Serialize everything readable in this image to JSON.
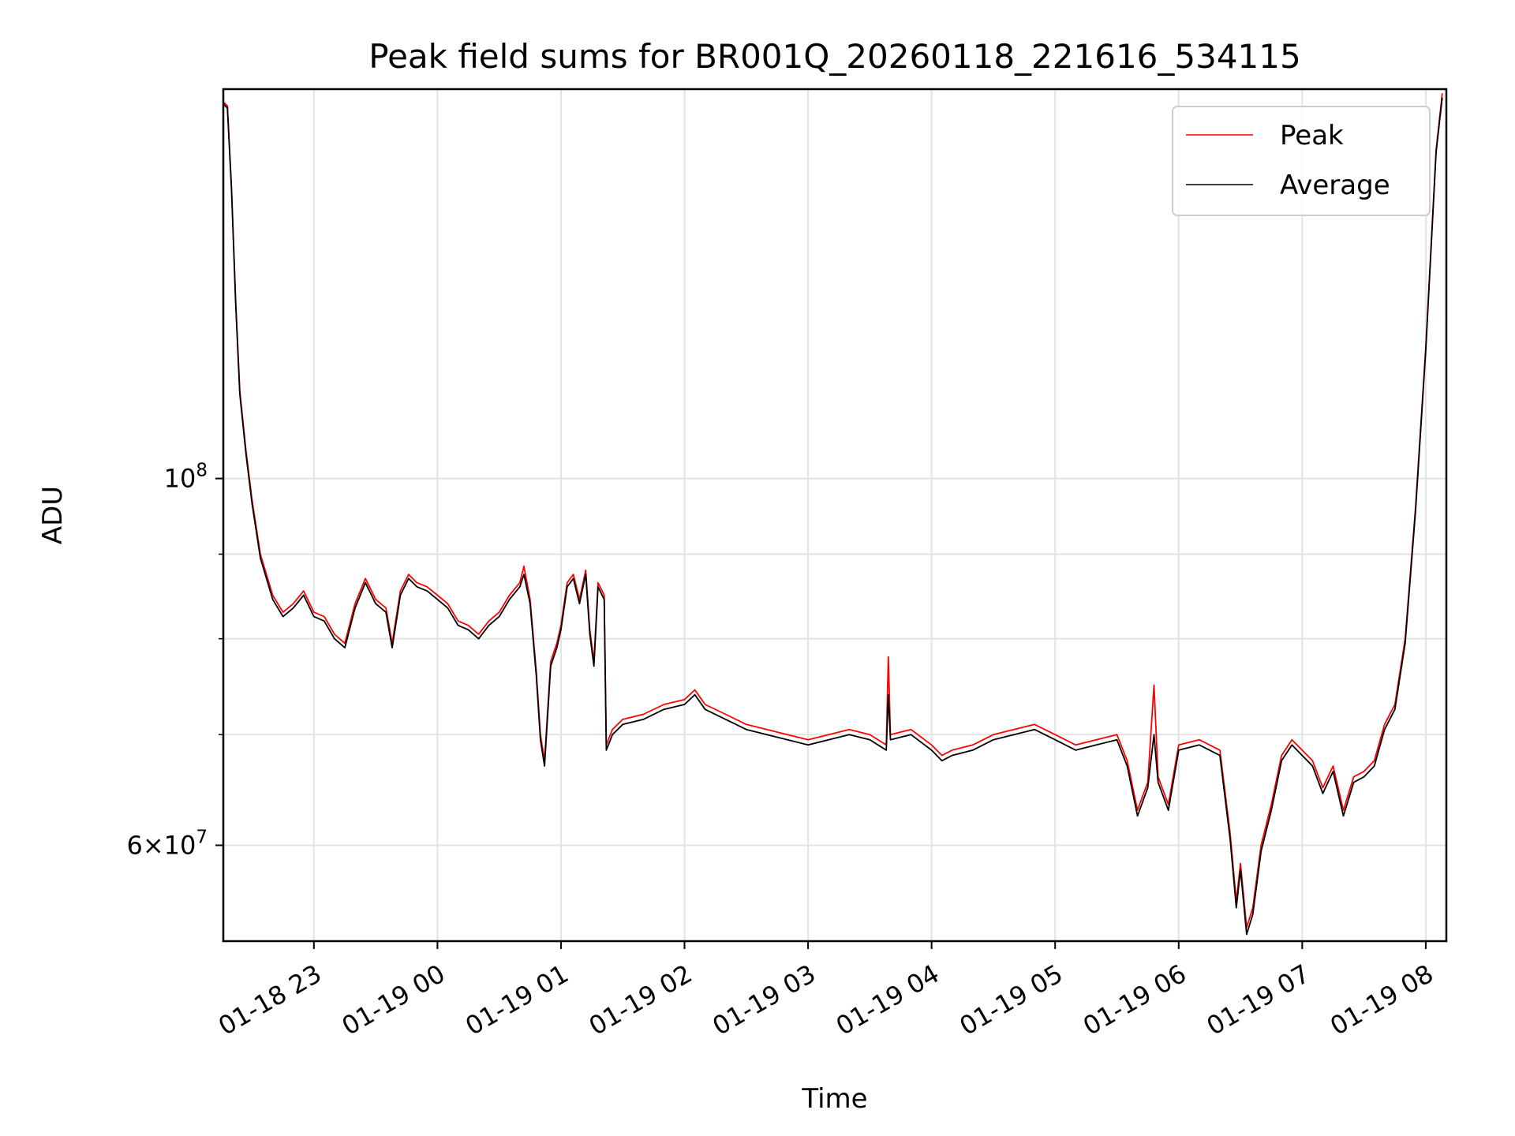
{
  "chart_data": {
    "type": "line",
    "title": "Peak field sums for BR001Q_20260118_221616_534115",
    "xlabel": "Time",
    "ylabel": "ADU",
    "yscale": "log",
    "ylim": [
      52500000,
      172000000
    ],
    "xlim": [
      "2026-01-18 22:16",
      "2026-01-19 08:10"
    ],
    "grid": true,
    "legend": "top-right",
    "x_ticks": [
      {
        "t": "2026-01-18 23:00",
        "label": "01-18 23"
      },
      {
        "t": "2026-01-19 00:00",
        "label": "01-19 00"
      },
      {
        "t": "2026-01-19 01:00",
        "label": "01-19 01"
      },
      {
        "t": "2026-01-19 02:00",
        "label": "01-19 02"
      },
      {
        "t": "2026-01-19 03:00",
        "label": "01-19 03"
      },
      {
        "t": "2026-01-19 04:00",
        "label": "01-19 04"
      },
      {
        "t": "2026-01-19 05:00",
        "label": "01-19 05"
      },
      {
        "t": "2026-01-19 06:00",
        "label": "01-19 06"
      },
      {
        "t": "2026-01-19 07:00",
        "label": "01-19 07"
      },
      {
        "t": "2026-01-19 08:00",
        "label": "01-19 08"
      }
    ],
    "y_ticks": [
      {
        "v": 100000000,
        "label_main": "10",
        "label_sup": "8"
      },
      {
        "v": 60000000,
        "label_main": "6×10",
        "label_sup": "7"
      }
    ],
    "y_minor_ticks": [
      70000000,
      80000000,
      90000000
    ],
    "series": [
      {
        "name": "Peak",
        "color": "#ff0000",
        "points": [
          [
            "2026-01-18 22:16",
            169000000
          ],
          [
            "2026-01-18 22:18",
            168000000
          ],
          [
            "2026-01-18 22:20",
            150000000
          ],
          [
            "2026-01-18 22:22",
            128000000
          ],
          [
            "2026-01-18 22:24",
            113000000
          ],
          [
            "2026-01-18 22:27",
            104000000
          ],
          [
            "2026-01-18 22:30",
            97000000
          ],
          [
            "2026-01-18 22:34",
            90000000
          ],
          [
            "2026-01-18 22:40",
            85000000
          ],
          [
            "2026-01-18 22:45",
            83000000
          ],
          [
            "2026-01-18 22:50",
            84000000
          ],
          [
            "2026-01-18 22:55",
            85500000
          ],
          [
            "2026-01-18 23:00",
            83000000
          ],
          [
            "2026-01-18 23:05",
            82500000
          ],
          [
            "2026-01-18 23:10",
            80500000
          ],
          [
            "2026-01-18 23:15",
            79500000
          ],
          [
            "2026-01-18 23:20",
            84000000
          ],
          [
            "2026-01-18 23:25",
            87000000
          ],
          [
            "2026-01-18 23:30",
            84500000
          ],
          [
            "2026-01-18 23:35",
            83500000
          ],
          [
            "2026-01-18 23:38",
            79500000
          ],
          [
            "2026-01-18 23:42",
            85500000
          ],
          [
            "2026-01-18 23:46",
            87500000
          ],
          [
            "2026-01-18 23:50",
            86500000
          ],
          [
            "2026-01-18 23:55",
            86000000
          ],
          [
            "2026-01-19 00:00",
            85000000
          ],
          [
            "2026-01-19 00:05",
            84000000
          ],
          [
            "2026-01-19 00:10",
            82000000
          ],
          [
            "2026-01-19 00:15",
            81500000
          ],
          [
            "2026-01-19 00:20",
            80500000
          ],
          [
            "2026-01-19 00:25",
            82000000
          ],
          [
            "2026-01-19 00:30",
            83000000
          ],
          [
            "2026-01-19 00:35",
            85000000
          ],
          [
            "2026-01-19 00:40",
            86500000
          ],
          [
            "2026-01-19 00:42",
            88500000
          ],
          [
            "2026-01-19 00:45",
            84500000
          ],
          [
            "2026-01-19 00:48",
            76500000
          ],
          [
            "2026-01-19 00:50",
            70000000
          ],
          [
            "2026-01-19 00:52",
            67500000
          ],
          [
            "2026-01-19 00:55",
            77500000
          ],
          [
            "2026-01-19 00:58",
            79500000
          ],
          [
            "2026-01-19 01:00",
            81500000
          ],
          [
            "2026-01-19 01:03",
            86500000
          ],
          [
            "2026-01-19 01:06",
            87500000
          ],
          [
            "2026-01-19 01:09",
            84500000
          ],
          [
            "2026-01-19 01:12",
            88000000
          ],
          [
            "2026-01-19 01:14",
            81000000
          ],
          [
            "2026-01-19 01:16",
            77500000
          ],
          [
            "2026-01-19 01:18",
            86500000
          ],
          [
            "2026-01-19 01:21",
            85000000
          ],
          [
            "2026-01-19 01:22",
            69000000
          ],
          [
            "2026-01-19 01:25",
            70500000
          ],
          [
            "2026-01-19 01:30",
            71500000
          ],
          [
            "2026-01-19 01:40",
            72000000
          ],
          [
            "2026-01-19 01:50",
            73000000
          ],
          [
            "2026-01-19 02:00",
            73500000
          ],
          [
            "2026-01-19 02:05",
            74500000
          ],
          [
            "2026-01-19 02:10",
            73000000
          ],
          [
            "2026-01-19 02:20",
            72000000
          ],
          [
            "2026-01-19 02:30",
            71000000
          ],
          [
            "2026-01-19 02:40",
            70500000
          ],
          [
            "2026-01-19 02:50",
            70000000
          ],
          [
            "2026-01-19 03:00",
            69500000
          ],
          [
            "2026-01-19 03:10",
            70000000
          ],
          [
            "2026-01-19 03:20",
            70500000
          ],
          [
            "2026-01-19 03:30",
            70000000
          ],
          [
            "2026-01-19 03:38",
            69000000
          ],
          [
            "2026-01-19 03:39",
            78000000
          ],
          [
            "2026-01-19 03:40",
            70000000
          ],
          [
            "2026-01-19 03:50",
            70500000
          ],
          [
            "2026-01-19 04:00",
            69000000
          ],
          [
            "2026-01-19 04:05",
            68000000
          ],
          [
            "2026-01-19 04:10",
            68500000
          ],
          [
            "2026-01-19 04:20",
            69000000
          ],
          [
            "2026-01-19 04:30",
            70000000
          ],
          [
            "2026-01-19 04:40",
            70500000
          ],
          [
            "2026-01-19 04:50",
            71000000
          ],
          [
            "2026-01-19 05:00",
            70000000
          ],
          [
            "2026-01-19 05:10",
            69000000
          ],
          [
            "2026-01-19 05:20",
            69500000
          ],
          [
            "2026-01-19 05:30",
            70000000
          ],
          [
            "2026-01-19 05:35",
            67500000
          ],
          [
            "2026-01-19 05:40",
            63000000
          ],
          [
            "2026-01-19 05:45",
            65500000
          ],
          [
            "2026-01-19 05:48",
            75000000
          ],
          [
            "2026-01-19 05:50",
            66000000
          ],
          [
            "2026-01-19 05:55",
            63500000
          ],
          [
            "2026-01-19 06:00",
            69000000
          ],
          [
            "2026-01-19 06:10",
            69500000
          ],
          [
            "2026-01-19 06:20",
            68500000
          ],
          [
            "2026-01-19 06:25",
            61000000
          ],
          [
            "2026-01-19 06:28",
            55500000
          ],
          [
            "2026-01-19 06:30",
            58500000
          ],
          [
            "2026-01-19 06:33",
            53500000
          ],
          [
            "2026-01-19 06:36",
            55000000
          ],
          [
            "2026-01-19 06:40",
            60000000
          ],
          [
            "2026-01-19 06:45",
            63500000
          ],
          [
            "2026-01-19 06:50",
            68000000
          ],
          [
            "2026-01-19 06:55",
            69500000
          ],
          [
            "2026-01-19 07:00",
            68500000
          ],
          [
            "2026-01-19 07:05",
            67500000
          ],
          [
            "2026-01-19 07:10",
            65000000
          ],
          [
            "2026-01-19 07:15",
            67000000
          ],
          [
            "2026-01-19 07:20",
            63000000
          ],
          [
            "2026-01-19 07:25",
            66000000
          ],
          [
            "2026-01-19 07:30",
            66500000
          ],
          [
            "2026-01-19 07:35",
            67500000
          ],
          [
            "2026-01-19 07:40",
            71000000
          ],
          [
            "2026-01-19 07:45",
            73000000
          ],
          [
            "2026-01-19 07:50",
            80000000
          ],
          [
            "2026-01-19 07:55",
            96000000
          ],
          [
            "2026-01-19 08:00",
            120000000
          ],
          [
            "2026-01-19 08:05",
            158000000
          ],
          [
            "2026-01-19 08:08",
            171000000
          ]
        ]
      },
      {
        "name": "Average",
        "color": "#000000",
        "points": [
          [
            "2026-01-18 22:16",
            168500000
          ],
          [
            "2026-01-18 22:18",
            167500000
          ],
          [
            "2026-01-18 22:20",
            149500000
          ],
          [
            "2026-01-18 22:22",
            127500000
          ],
          [
            "2026-01-18 22:24",
            112500000
          ],
          [
            "2026-01-18 22:27",
            103500000
          ],
          [
            "2026-01-18 22:30",
            96500000
          ],
          [
            "2026-01-18 22:34",
            89500000
          ],
          [
            "2026-01-18 22:40",
            84500000
          ],
          [
            "2026-01-18 22:45",
            82500000
          ],
          [
            "2026-01-18 22:50",
            83500000
          ],
          [
            "2026-01-18 22:55",
            85000000
          ],
          [
            "2026-01-18 23:00",
            82500000
          ],
          [
            "2026-01-18 23:05",
            82000000
          ],
          [
            "2026-01-18 23:10",
            80000000
          ],
          [
            "2026-01-18 23:15",
            79000000
          ],
          [
            "2026-01-18 23:20",
            83500000
          ],
          [
            "2026-01-18 23:25",
            86500000
          ],
          [
            "2026-01-18 23:30",
            84000000
          ],
          [
            "2026-01-18 23:35",
            83000000
          ],
          [
            "2026-01-18 23:38",
            79000000
          ],
          [
            "2026-01-18 23:42",
            85000000
          ],
          [
            "2026-01-18 23:46",
            87000000
          ],
          [
            "2026-01-18 23:50",
            86000000
          ],
          [
            "2026-01-18 23:55",
            85500000
          ],
          [
            "2026-01-19 00:00",
            84500000
          ],
          [
            "2026-01-19 00:05",
            83500000
          ],
          [
            "2026-01-19 00:10",
            81500000
          ],
          [
            "2026-01-19 00:15",
            81000000
          ],
          [
            "2026-01-19 00:20",
            80000000
          ],
          [
            "2026-01-19 00:25",
            81500000
          ],
          [
            "2026-01-19 00:30",
            82500000
          ],
          [
            "2026-01-19 00:35",
            84500000
          ],
          [
            "2026-01-19 00:40",
            86000000
          ],
          [
            "2026-01-19 00:42",
            87500000
          ],
          [
            "2026-01-19 00:45",
            84000000
          ],
          [
            "2026-01-19 00:48",
            76000000
          ],
          [
            "2026-01-19 00:50",
            69500000
          ],
          [
            "2026-01-19 00:52",
            67000000
          ],
          [
            "2026-01-19 00:55",
            77000000
          ],
          [
            "2026-01-19 00:58",
            79000000
          ],
          [
            "2026-01-19 01:00",
            81000000
          ],
          [
            "2026-01-19 01:03",
            86000000
          ],
          [
            "2026-01-19 01:06",
            87000000
          ],
          [
            "2026-01-19 01:09",
            84000000
          ],
          [
            "2026-01-19 01:12",
            87500000
          ],
          [
            "2026-01-19 01:14",
            80500000
          ],
          [
            "2026-01-19 01:16",
            77000000
          ],
          [
            "2026-01-19 01:18",
            86000000
          ],
          [
            "2026-01-19 01:21",
            84500000
          ],
          [
            "2026-01-19 01:22",
            68500000
          ],
          [
            "2026-01-19 01:25",
            70000000
          ],
          [
            "2026-01-19 01:30",
            71000000
          ],
          [
            "2026-01-19 01:40",
            71500000
          ],
          [
            "2026-01-19 01:50",
            72500000
          ],
          [
            "2026-01-19 02:00",
            73000000
          ],
          [
            "2026-01-19 02:05",
            74000000
          ],
          [
            "2026-01-19 02:10",
            72500000
          ],
          [
            "2026-01-19 02:20",
            71500000
          ],
          [
            "2026-01-19 02:30",
            70500000
          ],
          [
            "2026-01-19 02:40",
            70000000
          ],
          [
            "2026-01-19 02:50",
            69500000
          ],
          [
            "2026-01-19 03:00",
            69000000
          ],
          [
            "2026-01-19 03:10",
            69500000
          ],
          [
            "2026-01-19 03:20",
            70000000
          ],
          [
            "2026-01-19 03:30",
            69500000
          ],
          [
            "2026-01-19 03:38",
            68500000
          ],
          [
            "2026-01-19 03:39",
            74000000
          ],
          [
            "2026-01-19 03:40",
            69500000
          ],
          [
            "2026-01-19 03:50",
            70000000
          ],
          [
            "2026-01-19 04:00",
            68500000
          ],
          [
            "2026-01-19 04:05",
            67500000
          ],
          [
            "2026-01-19 04:10",
            68000000
          ],
          [
            "2026-01-19 04:20",
            68500000
          ],
          [
            "2026-01-19 04:30",
            69500000
          ],
          [
            "2026-01-19 04:40",
            70000000
          ],
          [
            "2026-01-19 04:50",
            70500000
          ],
          [
            "2026-01-19 05:00",
            69500000
          ],
          [
            "2026-01-19 05:10",
            68500000
          ],
          [
            "2026-01-19 05:20",
            69000000
          ],
          [
            "2026-01-19 05:30",
            69500000
          ],
          [
            "2026-01-19 05:35",
            67000000
          ],
          [
            "2026-01-19 05:40",
            62500000
          ],
          [
            "2026-01-19 05:45",
            65000000
          ],
          [
            "2026-01-19 05:48",
            70000000
          ],
          [
            "2026-01-19 05:50",
            65500000
          ],
          [
            "2026-01-19 05:55",
            63000000
          ],
          [
            "2026-01-19 06:00",
            68500000
          ],
          [
            "2026-01-19 06:10",
            69000000
          ],
          [
            "2026-01-19 06:20",
            68000000
          ],
          [
            "2026-01-19 06:25",
            60500000
          ],
          [
            "2026-01-19 06:28",
            55000000
          ],
          [
            "2026-01-19 06:30",
            58000000
          ],
          [
            "2026-01-19 06:33",
            53000000
          ],
          [
            "2026-01-19 06:36",
            54500000
          ],
          [
            "2026-01-19 06:40",
            59500000
          ],
          [
            "2026-01-19 06:45",
            63000000
          ],
          [
            "2026-01-19 06:50",
            67500000
          ],
          [
            "2026-01-19 06:55",
            69000000
          ],
          [
            "2026-01-19 07:00",
            68000000
          ],
          [
            "2026-01-19 07:05",
            67000000
          ],
          [
            "2026-01-19 07:10",
            64500000
          ],
          [
            "2026-01-19 07:15",
            66500000
          ],
          [
            "2026-01-19 07:20",
            62500000
          ],
          [
            "2026-01-19 07:25",
            65500000
          ],
          [
            "2026-01-19 07:30",
            66000000
          ],
          [
            "2026-01-19 07:35",
            67000000
          ],
          [
            "2026-01-19 07:40",
            70500000
          ],
          [
            "2026-01-19 07:45",
            72500000
          ],
          [
            "2026-01-19 07:50",
            79500000
          ],
          [
            "2026-01-19 07:55",
            95500000
          ],
          [
            "2026-01-19 08:00",
            119500000
          ],
          [
            "2026-01-19 08:05",
            157500000
          ],
          [
            "2026-01-19 08:08",
            170000000
          ]
        ]
      }
    ]
  }
}
